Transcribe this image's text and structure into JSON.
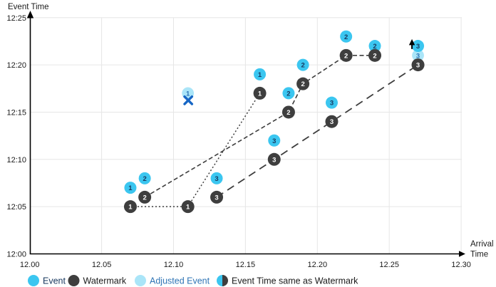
{
  "chart_data": {
    "type": "scatter",
    "title": "",
    "xlabel": "Arrival Time",
    "ylabel": "Event Time",
    "x_axis": {
      "title_lines": [
        "Arrival",
        "Time"
      ],
      "tick_values": [
        12.0,
        12.05,
        12.1,
        12.15,
        12.2,
        12.25,
        12.3
      ],
      "tick_labels": [
        "12.00",
        "12.05",
        "12.10",
        "12.15",
        "12.20",
        "12.25",
        "12.30"
      ],
      "range": [
        12.0,
        12.3
      ],
      "grid": true
    },
    "y_axis": {
      "title": "Event Time",
      "tick_minutes": [
        25,
        20,
        15,
        10,
        5,
        0
      ],
      "tick_labels": [
        "12:25",
        "12:20",
        "12:15",
        "12:10",
        "12:05",
        "12:00"
      ],
      "range": [
        "12:00",
        "12:25"
      ],
      "grid": true
    },
    "series": [
      {
        "name": "Event",
        "marker": "event",
        "points": [
          {
            "label": "1",
            "x": 12.07,
            "time": "12:07"
          },
          {
            "label": "1",
            "x": 12.16,
            "time": "12:19"
          },
          {
            "label": "2",
            "x": 12.08,
            "time": "12:08"
          },
          {
            "label": "2",
            "x": 12.18,
            "time": "12:17"
          },
          {
            "label": "2",
            "x": 12.19,
            "time": "12:20"
          },
          {
            "label": "2",
            "x": 12.22,
            "time": "12:23"
          },
          {
            "label": "2",
            "x": 12.24,
            "time": "12:22"
          },
          {
            "label": "3",
            "x": 12.13,
            "time": "12:08"
          },
          {
            "label": "3",
            "x": 12.17,
            "time": "12:12"
          },
          {
            "label": "3",
            "x": 12.21,
            "time": "12:16"
          },
          {
            "label": "3",
            "x": 12.27,
            "time": "12:22"
          }
        ]
      },
      {
        "name": "Adjusted Event",
        "marker": "adjusted",
        "points": [
          {
            "label": "1",
            "x": 12.11,
            "time": "12:17",
            "annotation": "dropped-x"
          },
          {
            "label": "3",
            "x": 12.27,
            "time": "12:21",
            "annotation": "up-arrow"
          }
        ]
      },
      {
        "name": "Watermark",
        "marker": "watermark",
        "lines": [
          {
            "id": "1",
            "dash": "dotted",
            "points": [
              {
                "label": "1",
                "x": 12.07,
                "time": "12:05"
              },
              {
                "label": "1",
                "x": 12.11,
                "time": "12:05"
              },
              {
                "label": "1",
                "x": 12.16,
                "time": "12:17"
              }
            ]
          },
          {
            "id": "2",
            "dash": "dashed",
            "points": [
              {
                "label": "2",
                "x": 12.08,
                "time": "12:06"
              },
              {
                "label": "2",
                "x": 12.18,
                "time": "12:15"
              },
              {
                "label": "2",
                "x": 12.19,
                "time": "12:18"
              },
              {
                "label": "2",
                "x": 12.22,
                "time": "12:21"
              },
              {
                "label": "2",
                "x": 12.24,
                "time": "12:21"
              }
            ]
          },
          {
            "id": "3",
            "dash": "longdash",
            "points": [
              {
                "label": "3",
                "x": 12.13,
                "time": "12:06"
              },
              {
                "label": "3",
                "x": 12.17,
                "time": "12:10"
              },
              {
                "label": "3",
                "x": 12.21,
                "time": "12:14"
              },
              {
                "label": "3",
                "x": 12.27,
                "time": "12:20"
              }
            ]
          }
        ]
      }
    ],
    "legend": {
      "position": "bottom",
      "items": [
        {
          "label": "Event",
          "swatch": "event",
          "text_color": "#17375E"
        },
        {
          "label": "Watermark",
          "swatch": "watermark",
          "text_color": "#1A1A1A"
        },
        {
          "label": "Adjusted Event",
          "swatch": "adjusted",
          "text_color": "#2E74B5"
        },
        {
          "label": "Event Time same as Watermark",
          "swatch": "half",
          "text_color": "#1A1A1A"
        }
      ]
    }
  },
  "colors": {
    "event": "#3BC6F0",
    "event_label": "#17375E",
    "adjusted": "#AAE5F8",
    "adjusted_label": "#2E74B5",
    "watermark": "#3E3E3E",
    "watermark_label": "#FFFFFF",
    "line": "#3E3E3E",
    "grid": "#E6E6E6",
    "axis": "#000000",
    "text": "#1A1A1A",
    "x_mark": "#1666C5",
    "arrow": "#000000"
  }
}
